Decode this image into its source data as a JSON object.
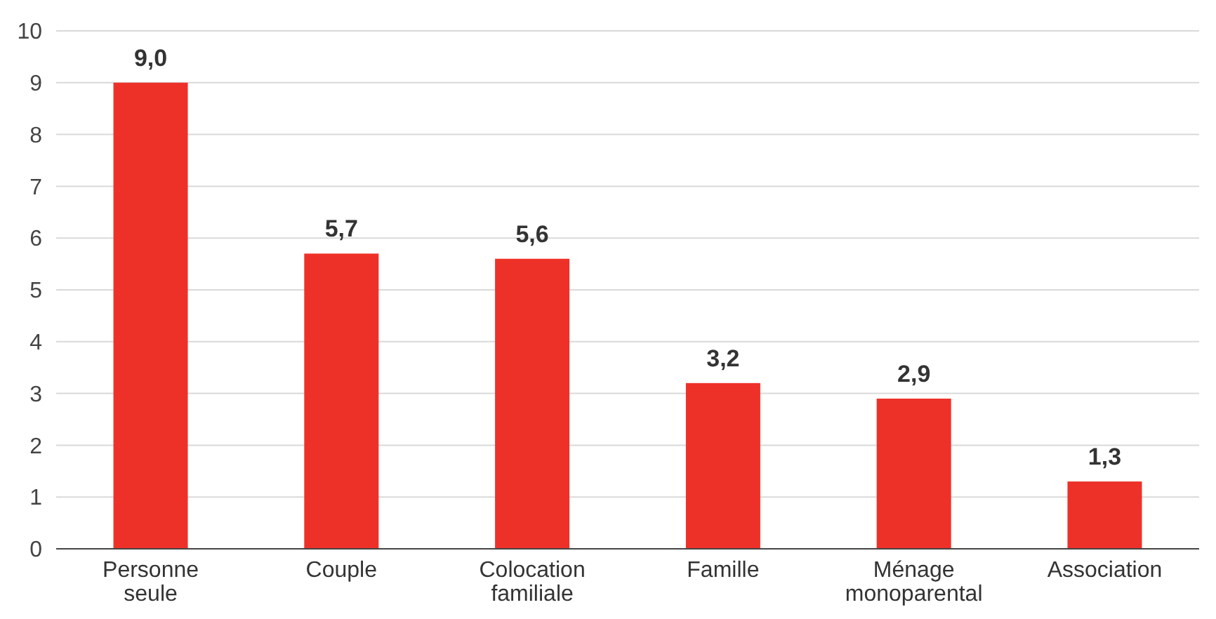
{
  "chart_data": {
    "type": "bar",
    "categories": [
      "Personne seule",
      "Couple",
      "Colocation familiale",
      "Famille",
      "Ménage monoparental",
      "Association"
    ],
    "values": [
      9.0,
      5.7,
      5.6,
      3.2,
      2.9,
      1.3
    ],
    "value_labels": [
      "9,0",
      "5,7",
      "5,6",
      "3,2",
      "2,9",
      "1,3"
    ],
    "color": "#ee3128",
    "ylim": [
      0,
      10
    ],
    "yticks": [
      0,
      1,
      2,
      3,
      4,
      5,
      6,
      7,
      8,
      9,
      10
    ],
    "grid": "y"
  }
}
